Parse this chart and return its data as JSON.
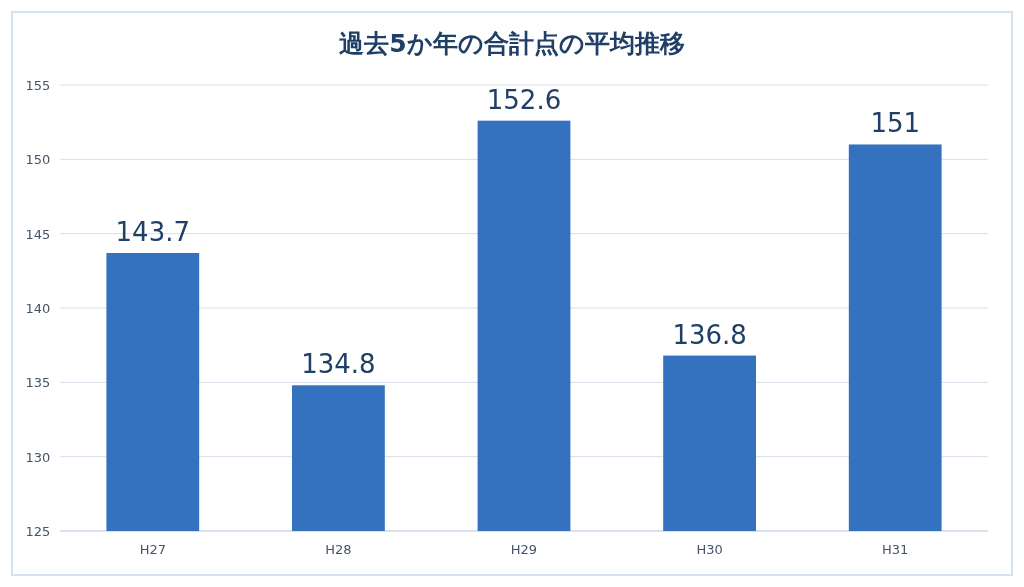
{
  "chart_data": {
    "type": "bar",
    "title": "過去5か年の合計点の平均推移",
    "categories": [
      "H27",
      "H28",
      "H29",
      "H30",
      "H31"
    ],
    "values": [
      143.7,
      134.8,
      152.6,
      136.8,
      151
    ],
    "color": "#3472bf",
    "ylim": [
      125,
      155
    ],
    "yticks": [
      125,
      130,
      135,
      140,
      145,
      150,
      155
    ],
    "grid": "y",
    "data_labels": true
  }
}
